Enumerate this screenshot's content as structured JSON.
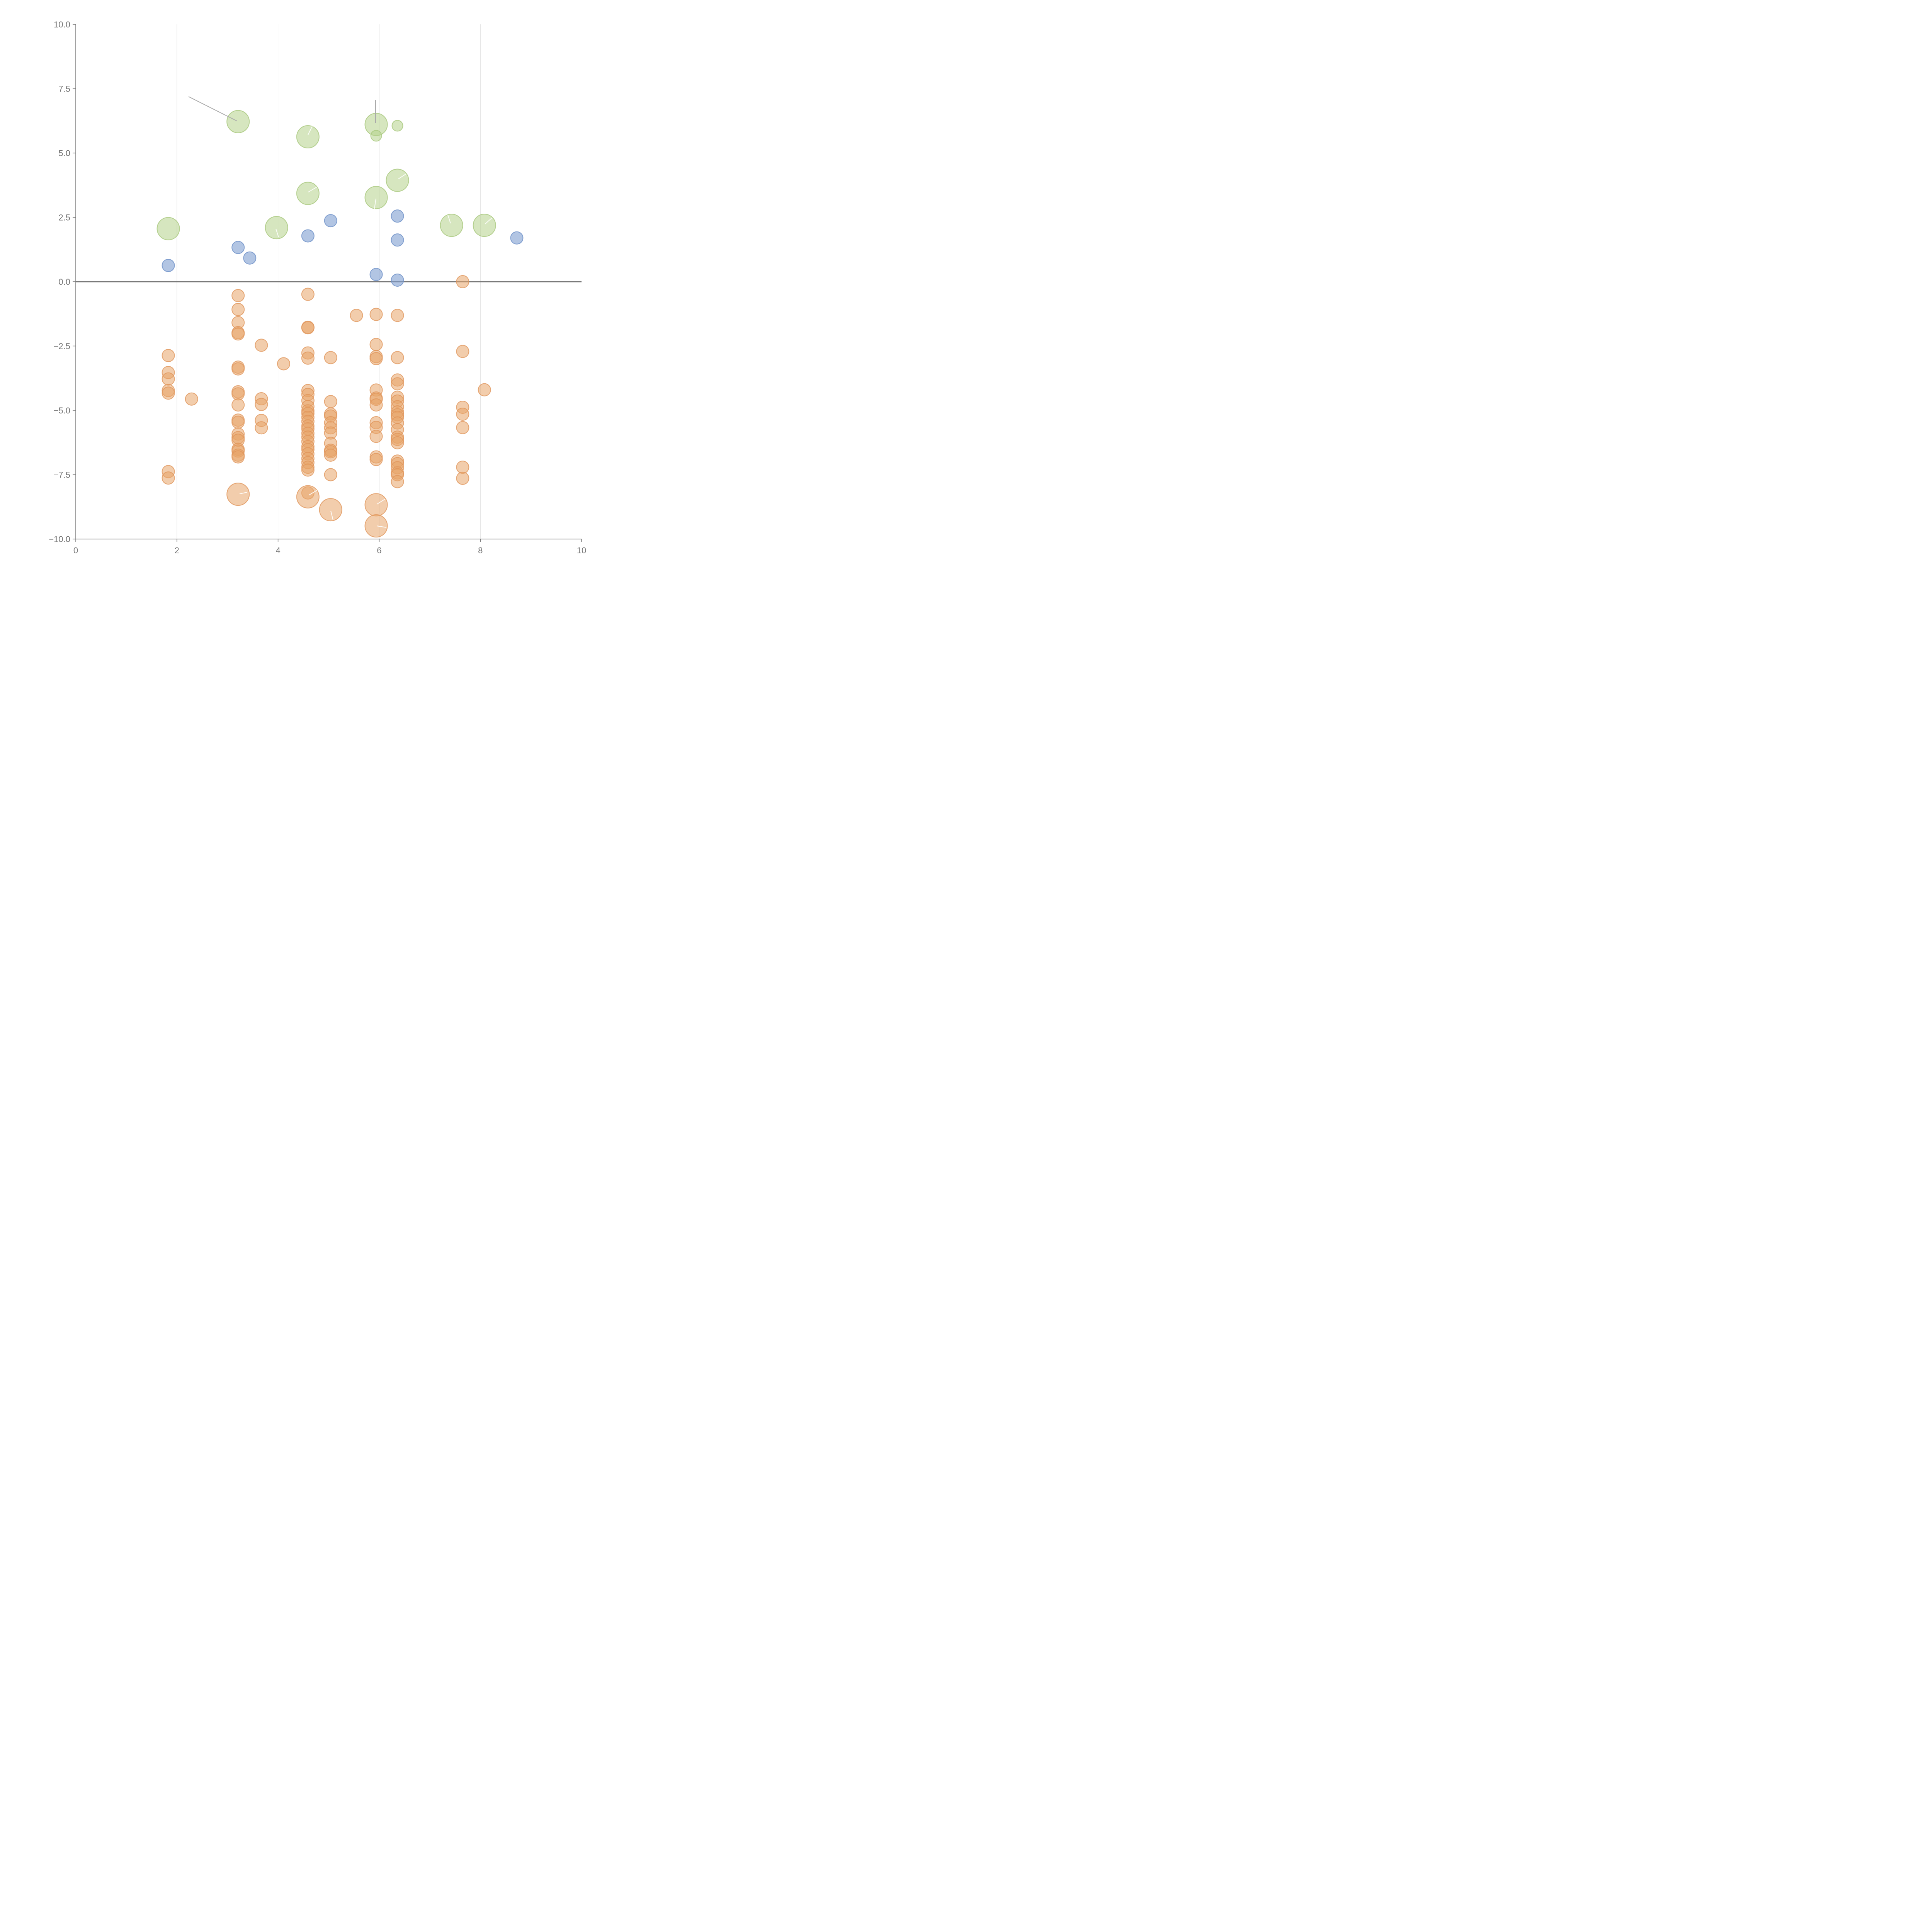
{
  "chart_data": {
    "type": "scatter",
    "title": "",
    "xlabel": "",
    "ylabel": "",
    "xlim": [
      0,
      10
    ],
    "ylim": [
      -10,
      10
    ],
    "x_ticks": [
      "0",
      "2",
      "4",
      "6",
      "8",
      "10"
    ],
    "y_ticks": [
      "10.0",
      "7.5",
      "5.0",
      "2.5",
      "0.0",
      "−2.5",
      "−5.0",
      "−7.5",
      "−10.0"
    ],
    "grid": "vertical gridlines at x = 2, 4, 6, 8",
    "reference_line": {
      "y": 0
    },
    "legend": "none",
    "colors": {
      "green": "#b5d18b",
      "blue": "#7f9fd1",
      "orange": "#e8a468"
    },
    "series": [
      {
        "color": "green",
        "points": [
          {
            "x": 1.83,
            "y": 2.06,
            "size": "large"
          },
          {
            "x": 3.21,
            "y": 6.22,
            "size": "large"
          },
          {
            "x": 3.97,
            "y": 2.1,
            "size": "large"
          },
          {
            "x": 4.59,
            "y": 5.63,
            "size": "large"
          },
          {
            "x": 4.59,
            "y": 3.43,
            "size": "large"
          },
          {
            "x": 5.94,
            "y": 6.11,
            "size": "large"
          },
          {
            "x": 5.94,
            "y": 5.67,
            "size": "small"
          },
          {
            "x": 5.94,
            "y": 3.27,
            "size": "large"
          },
          {
            "x": 6.36,
            "y": 6.06,
            "size": "small"
          },
          {
            "x": 6.36,
            "y": 3.94,
            "size": "large"
          },
          {
            "x": 7.43,
            "y": 2.19,
            "size": "large"
          },
          {
            "x": 8.08,
            "y": 2.19,
            "size": "large"
          }
        ]
      },
      {
        "color": "blue",
        "points": [
          {
            "x": 1.83,
            "y": 0.63
          },
          {
            "x": 3.21,
            "y": 1.33
          },
          {
            "x": 3.44,
            "y": 0.92
          },
          {
            "x": 4.59,
            "y": 1.78
          },
          {
            "x": 5.04,
            "y": 2.37
          },
          {
            "x": 5.94,
            "y": 0.28
          },
          {
            "x": 6.36,
            "y": 2.55
          },
          {
            "x": 6.36,
            "y": 1.62
          },
          {
            "x": 6.36,
            "y": 0.06
          },
          {
            "x": 8.72,
            "y": 1.7
          }
        ]
      },
      {
        "color": "orange",
        "points": [
          {
            "x": 1.83,
            "y": -2.87
          },
          {
            "x": 1.83,
            "y": -3.53
          },
          {
            "x": 1.83,
            "y": -3.78
          },
          {
            "x": 1.83,
            "y": -4.23
          },
          {
            "x": 1.83,
            "y": -4.33
          },
          {
            "x": 1.83,
            "y": -7.38
          },
          {
            "x": 1.83,
            "y": -7.63
          },
          {
            "x": 2.29,
            "y": -4.56
          },
          {
            "x": 3.21,
            "y": -0.54
          },
          {
            "x": 3.21,
            "y": -1.08
          },
          {
            "x": 3.21,
            "y": -1.59
          },
          {
            "x": 3.21,
            "y": -1.98
          },
          {
            "x": 3.21,
            "y": -2.03
          },
          {
            "x": 3.21,
            "y": -3.32
          },
          {
            "x": 3.21,
            "y": -3.39
          },
          {
            "x": 3.21,
            "y": -4.28
          },
          {
            "x": 3.21,
            "y": -4.36
          },
          {
            "x": 3.21,
            "y": -4.79
          },
          {
            "x": 3.21,
            "y": -5.38
          },
          {
            "x": 3.21,
            "y": -5.46
          },
          {
            "x": 3.21,
            "y": -5.92
          },
          {
            "x": 3.21,
            "y": -6.06
          },
          {
            "x": 3.21,
            "y": -6.16
          },
          {
            "x": 3.21,
            "y": -6.51
          },
          {
            "x": 3.21,
            "y": -6.58
          },
          {
            "x": 3.21,
            "y": -6.74
          },
          {
            "x": 3.21,
            "y": -6.81
          },
          {
            "x": 3.21,
            "y": -8.26,
            "size": "large"
          },
          {
            "x": 3.67,
            "y": -2.47
          },
          {
            "x": 3.67,
            "y": -4.55
          },
          {
            "x": 3.67,
            "y": -4.77
          },
          {
            "x": 3.67,
            "y": -5.39
          },
          {
            "x": 3.67,
            "y": -5.68
          },
          {
            "x": 4.11,
            "y": -3.19
          },
          {
            "x": 4.59,
            "y": -0.49
          },
          {
            "x": 4.59,
            "y": -1.77
          },
          {
            "x": 4.59,
            "y": -1.79
          },
          {
            "x": 4.59,
            "y": -2.77
          },
          {
            "x": 4.59,
            "y": -2.97
          },
          {
            "x": 4.59,
            "y": -4.23
          },
          {
            "x": 4.59,
            "y": -4.38
          },
          {
            "x": 4.59,
            "y": -4.62
          },
          {
            "x": 4.59,
            "y": -4.85
          },
          {
            "x": 4.59,
            "y": -5.02
          },
          {
            "x": 4.59,
            "y": -5.12
          },
          {
            "x": 4.59,
            "y": -5.27
          },
          {
            "x": 4.59,
            "y": -5.43
          },
          {
            "x": 4.59,
            "y": -5.61
          },
          {
            "x": 4.59,
            "y": -5.72
          },
          {
            "x": 4.59,
            "y": -5.89
          },
          {
            "x": 4.59,
            "y": -6.04
          },
          {
            "x": 4.59,
            "y": -6.21
          },
          {
            "x": 4.59,
            "y": -6.41
          },
          {
            "x": 4.59,
            "y": -6.52
          },
          {
            "x": 4.59,
            "y": -6.69
          },
          {
            "x": 4.59,
            "y": -6.87
          },
          {
            "x": 4.59,
            "y": -7.03
          },
          {
            "x": 4.59,
            "y": -7.21
          },
          {
            "x": 4.59,
            "y": -7.32
          },
          {
            "x": 4.59,
            "y": -8.21
          },
          {
            "x": 4.59,
            "y": -8.36,
            "size": "large"
          },
          {
            "x": 5.04,
            "y": -2.95
          },
          {
            "x": 5.04,
            "y": -4.66
          },
          {
            "x": 5.04,
            "y": -5.14
          },
          {
            "x": 5.04,
            "y": -5.22
          },
          {
            "x": 5.04,
            "y": -5.48
          },
          {
            "x": 5.04,
            "y": -5.68
          },
          {
            "x": 5.04,
            "y": -5.88
          },
          {
            "x": 5.04,
            "y": -6.28
          },
          {
            "x": 5.04,
            "y": -6.55
          },
          {
            "x": 5.04,
            "y": -6.61
          },
          {
            "x": 5.04,
            "y": -6.74
          },
          {
            "x": 5.04,
            "y": -7.5
          },
          {
            "x": 5.04,
            "y": -8.86,
            "size": "large"
          },
          {
            "x": 5.55,
            "y": -1.31
          },
          {
            "x": 5.94,
            "y": -1.27
          },
          {
            "x": 5.94,
            "y": -2.44
          },
          {
            "x": 5.94,
            "y": -2.91
          },
          {
            "x": 5.94,
            "y": -2.99
          },
          {
            "x": 5.94,
            "y": -4.21
          },
          {
            "x": 5.94,
            "y": -4.52
          },
          {
            "x": 5.94,
            "y": -4.57
          },
          {
            "x": 5.94,
            "y": -4.79
          },
          {
            "x": 5.94,
            "y": -5.48
          },
          {
            "x": 5.94,
            "y": -5.66
          },
          {
            "x": 5.94,
            "y": -6.01
          },
          {
            "x": 5.94,
            "y": -6.81
          },
          {
            "x": 5.94,
            "y": -6.91
          },
          {
            "x": 5.94,
            "y": -8.67,
            "size": "large"
          },
          {
            "x": 5.94,
            "y": -9.49,
            "size": "large"
          },
          {
            "x": 6.36,
            "y": -1.31
          },
          {
            "x": 6.36,
            "y": -2.95
          },
          {
            "x": 6.36,
            "y": -3.82
          },
          {
            "x": 6.36,
            "y": -3.97
          },
          {
            "x": 6.36,
            "y": -4.49
          },
          {
            "x": 6.36,
            "y": -4.64
          },
          {
            "x": 6.36,
            "y": -4.86
          },
          {
            "x": 6.36,
            "y": -5.06
          },
          {
            "x": 6.36,
            "y": -5.17
          },
          {
            "x": 6.36,
            "y": -5.27
          },
          {
            "x": 6.36,
            "y": -5.49
          },
          {
            "x": 6.36,
            "y": -5.75
          },
          {
            "x": 6.36,
            "y": -6.04
          },
          {
            "x": 6.36,
            "y": -6.13
          },
          {
            "x": 6.36,
            "y": -6.26
          },
          {
            "x": 6.36,
            "y": -6.97
          },
          {
            "x": 6.36,
            "y": -7.07
          },
          {
            "x": 6.36,
            "y": -7.23
          },
          {
            "x": 6.36,
            "y": -7.43
          },
          {
            "x": 6.36,
            "y": -7.5
          },
          {
            "x": 6.36,
            "y": -7.77
          },
          {
            "x": 7.65,
            "y": 0.0
          },
          {
            "x": 7.65,
            "y": -2.71
          },
          {
            "x": 7.65,
            "y": -4.88
          },
          {
            "x": 7.65,
            "y": -5.15
          },
          {
            "x": 7.65,
            "y": -5.67
          },
          {
            "x": 7.65,
            "y": -7.21
          },
          {
            "x": 7.65,
            "y": -7.64
          },
          {
            "x": 8.08,
            "y": -4.2
          }
        ]
      }
    ]
  }
}
